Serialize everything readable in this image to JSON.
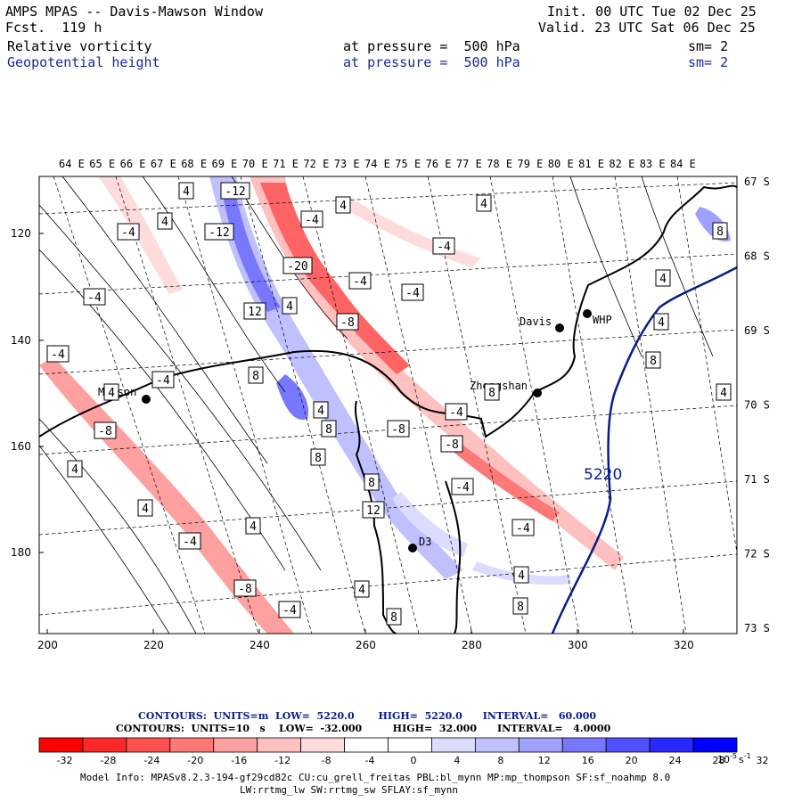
{
  "header": {
    "title": "AMPS MPAS -- Davis-Mawson Window",
    "forecast": "Fcst.  119 h",
    "init": "Init. 00 UTC Tue 02 Dec 25",
    "valid": "Valid. 23 UTC Sat 06 Dec 25",
    "field1": {
      "name": "Relative vorticity",
      "level": "at pressure =  500 hPa",
      "smooth": "sm= 2"
    },
    "field2": {
      "name": "Geopotential height",
      "level": "at pressure =  500 hPa",
      "smooth": "sm= 2"
    }
  },
  "axes": {
    "top_longitudes": [
      "64 E",
      "65 E",
      "66 E",
      "67 E",
      "68 E",
      "69 E",
      "70 E",
      "71 E",
      "72 E",
      "73 E",
      "74 E",
      "75 E",
      "76 E",
      "77 E",
      "78 E",
      "79 E",
      "80 E",
      "81 E",
      "82 E",
      "83 E",
      "84 E"
    ],
    "right_latitudes": [
      "67 S",
      "68 S",
      "69 S",
      "70 S",
      "71 S",
      "72 S",
      "73 S"
    ],
    "left_ticks": [
      "120",
      "140",
      "160",
      "180"
    ],
    "bottom_ticks": [
      "200",
      "220",
      "240",
      "260",
      "280",
      "300",
      "320"
    ]
  },
  "stations": [
    {
      "name": "Davis"
    },
    {
      "name": "WHP"
    },
    {
      "name": "Mawson"
    },
    {
      "name": "Zhongshan"
    },
    {
      "name": "D3"
    }
  ],
  "vorticity_labels": [
    "4",
    "-12",
    "4",
    "-4",
    "4",
    "-4",
    "4",
    "-12",
    "-4",
    "-20",
    "-4",
    "4",
    "-4",
    "-4",
    "12",
    "4",
    "-8",
    "4",
    "-4",
    "8",
    "8",
    "4",
    "8",
    "4",
    "8",
    "8",
    "-8",
    "-8",
    "4",
    "-8",
    "8",
    "4",
    "8",
    "12",
    "-4",
    "-4",
    "-4",
    "4",
    "-8",
    "-4",
    "-4",
    "4",
    "8",
    "-4",
    "4",
    "8",
    "4"
  ],
  "geopotential_label": "5220",
  "footer": {
    "contours_height": "CONTOURS:  UNITS=m  LOW=  5220.0       HIGH=  5220.0      INTERVAL=   60.000",
    "contours_vort": "CONTOURS:  UNITS=10   s    LOW=  -32.000         HIGH=  32.000      INTERVAL=   4.0000",
    "colorbar_ticks": [
      "-32",
      "-28",
      "-24",
      "-20",
      "-16",
      "-12",
      "-8",
      "-4",
      "0",
      "4",
      "8",
      "12",
      "16",
      "20",
      "24",
      "28",
      "32"
    ],
    "colorbar_unit": "10",
    "colorbar_unit_exp": "-5",
    "colorbar_unit_s": "s",
    "colorbar_unit_sexp": "-1",
    "model_info_1": "Model Info: MPASv8.2.3-194-gf29cd82c CU:cu_grell_freitas PBL:bl_mynn MP:mp_thompson SF:sf_noahmp 8.0",
    "model_info_2": "LW:rrtmg_lw SW:rrtmg_sw SFLAY:sf_mynn"
  },
  "colors": {
    "colorbar": [
      "#ff0000",
      "#ff2828",
      "#ff5050",
      "#ff7878",
      "#ffa0a0",
      "#ffc0c0",
      "#ffdcdc",
      "#ffffff",
      "#ffffff",
      "#dcdcff",
      "#c0c0ff",
      "#a0a0ff",
      "#7878ff",
      "#5050ff",
      "#2828ff",
      "#0000ff"
    ],
    "geopotential_line": "#0a1a8a",
    "header_blue": "#1a2a9a"
  }
}
